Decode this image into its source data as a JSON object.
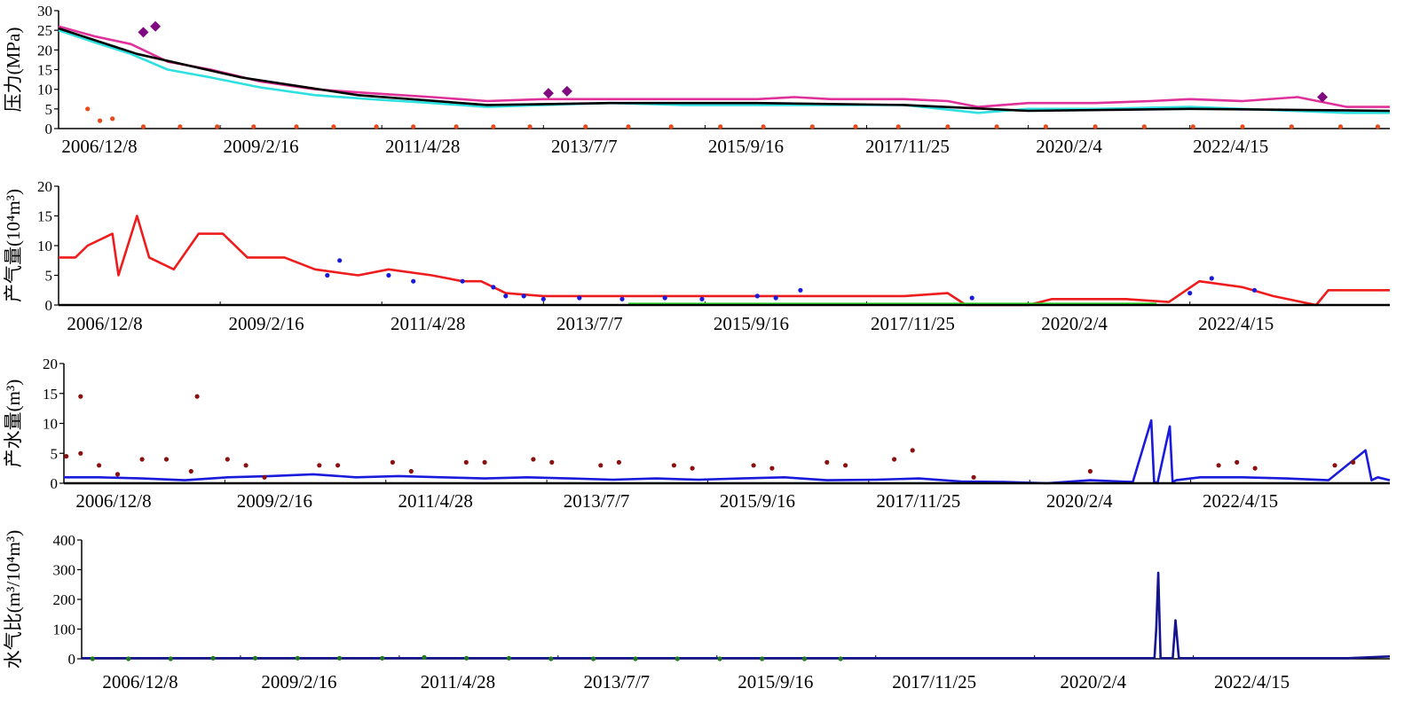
{
  "chart_data": [
    {
      "type": "line",
      "ylabel": "压力(MPa)",
      "ylim": [
        0,
        30
      ],
      "yticks": [
        "0",
        "5",
        "10",
        "15",
        "20",
        "25",
        "30"
      ],
      "x_tick_labels": [
        "2006/12/8",
        "2009/2/16",
        "2011/4/28",
        "2013/7/7",
        "2015/9/16",
        "2017/11/25",
        "2020/2/4",
        "2022/4/15"
      ],
      "xlim": [
        "2006/12/8",
        "2024/12/31"
      ],
      "series": [
        {
          "color": "#e0309a",
          "style": "line",
          "x": [
            "2006/12/8",
            "2007/6/1",
            "2007/12/1",
            "2008/6/1",
            "2009/1/1",
            "2009/9/1",
            "2010/6/1",
            "2011/3/1",
            "2012/1/1",
            "2012/10/1",
            "2013/7/7",
            "2014/6/1",
            "2015/6/1",
            "2016/6/1",
            "2016/12/1",
            "2017/6/1",
            "2018/6/1",
            "2019/1/1",
            "2019/6/1",
            "2020/2/4",
            "2021/1/1",
            "2021/10/1",
            "2022/4/15",
            "2023/1/1",
            "2023/10/1",
            "2024/6/1",
            "2024/12/31"
          ],
          "values": [
            26,
            23.5,
            21.5,
            17,
            15,
            12,
            10,
            9,
            8,
            7,
            7.5,
            7.5,
            7.5,
            7.5,
            8,
            7.5,
            7.5,
            7,
            5.5,
            6.5,
            6.5,
            7,
            7.5,
            7,
            8,
            5.5,
            5.5
          ]
        },
        {
          "color": "#2ee0e0",
          "style": "line",
          "x": [
            "2006/12/8",
            "2007/6/1",
            "2007/12/1",
            "2008/6/1",
            "2009/1/1",
            "2009/9/1",
            "2010/6/1",
            "2011/3/1",
            "2012/1/1",
            "2012/10/1",
            "2013/7/7",
            "2014/6/1",
            "2015/6/1",
            "2016/6/1",
            "2017/6/1",
            "2018/6/1",
            "2019/6/1",
            "2020/2/4",
            "2021/1/1",
            "2022/4/15",
            "2023/1/1",
            "2024/6/1",
            "2024/12/31"
          ],
          "values": [
            25,
            22,
            19,
            15,
            13,
            10.5,
            8.5,
            7.5,
            6.5,
            5.5,
            6,
            6.5,
            6,
            6,
            6,
            6,
            4,
            5,
            5,
            5.5,
            5,
            4,
            4
          ]
        },
        {
          "color": "#000000",
          "style": "line",
          "x": [
            "2006/12/8",
            "2008/1/1",
            "2009/6/1",
            "2011/1/1",
            "2012/10/1",
            "2014/6/1",
            "2016/6/1",
            "2018/6/1",
            "2020/2/4",
            "2022/4/15",
            "2024/12/31"
          ],
          "values": [
            25.5,
            19,
            13,
            8.5,
            6,
            6.5,
            6.5,
            6,
            4.5,
            5,
            4.5
          ]
        },
        {
          "color": "#e84a1c",
          "style": "points",
          "x": [
            "2007/5/1",
            "2007/7/1",
            "2007/9/1",
            "2008/2/1",
            "2008/8/1",
            "2009/2/1",
            "2009/8/1",
            "2010/3/1",
            "2010/9/1",
            "2011/4/1",
            "2011/10/1",
            "2012/5/1",
            "2012/11/1",
            "2013/5/1",
            "2014/2/1",
            "2014/9/1",
            "2015/4/1",
            "2015/12/1",
            "2016/7/1",
            "2017/3/1",
            "2017/10/1",
            "2018/5/1",
            "2019/1/1",
            "2019/9/1",
            "2020/5/1",
            "2021/1/1",
            "2021/9/1",
            "2022/5/1",
            "2023/1/1",
            "2023/9/1",
            "2024/5/1",
            "2024/11/1"
          ],
          "values": [
            5,
            2,
            2.5,
            0.5,
            0.5,
            0.5,
            0.5,
            0.5,
            0.5,
            0.5,
            0.5,
            0.5,
            0.5,
            0.5,
            0.5,
            0.5,
            0.5,
            0.5,
            0.5,
            0.5,
            0.5,
            0.5,
            0.5,
            0.5,
            0.5,
            0.5,
            0.5,
            0.5,
            0.5,
            0.5,
            0.5,
            0.5
          ]
        },
        {
          "color": "#800a80",
          "style": "diamonds",
          "x": [
            "2008/2/1",
            "2008/4/1",
            "2013/8/1",
            "2013/11/1",
            "2024/2/1"
          ],
          "values": [
            24.5,
            26,
            9,
            9.5,
            8
          ]
        }
      ]
    },
    {
      "type": "line",
      "ylabel": "产气量(10⁴m³)",
      "ylim": [
        0,
        20
      ],
      "yticks": [
        "0",
        "5",
        "10",
        "15",
        "20"
      ],
      "x_tick_labels": [
        "2006/12/8",
        "2009/2/16",
        "2011/4/28",
        "2013/7/7",
        "2015/9/16",
        "2017/11/25",
        "2020/2/4",
        "2022/4/15"
      ],
      "xlim": [
        "2006/12/8",
        "2024/12/31"
      ],
      "series": [
        {
          "color": "#ee1c1c",
          "style": "line",
          "x": [
            "2006/12/8",
            "2007/3/1",
            "2007/5/1",
            "2007/9/1",
            "2007/10/1",
            "2008/1/1",
            "2008/3/1",
            "2008/7/1",
            "2008/11/1",
            "2009/3/1",
            "2009/7/1",
            "2010/1/1",
            "2010/6/1",
            "2011/1/1",
            "2011/6/1",
            "2012/1/1",
            "2012/6/1",
            "2012/9/1",
            "2013/1/1",
            "2013/7/7",
            "2014/6/1",
            "2015/6/1",
            "2016/6/1",
            "2017/6/1",
            "2018/6/1",
            "2019/1/1",
            "2019/4/1",
            "2020/2/4",
            "2020/6/1",
            "2021/6/1",
            "2022/1/1",
            "2022/6/1",
            "2023/1/1",
            "2023/6/1",
            "2024/1/1",
            "2024/3/1",
            "2024/12/31"
          ],
          "values": [
            8,
            8,
            10,
            12,
            5,
            15,
            8,
            6,
            12,
            12,
            8,
            8,
            6,
            5,
            6,
            5,
            4,
            4,
            2,
            1.5,
            1.5,
            1.5,
            1.5,
            1.5,
            1.5,
            2,
            0,
            0,
            1,
            1,
            0.5,
            4,
            3,
            1.5,
            0,
            2.5,
            2.5
          ]
        },
        {
          "color": "#1a1adc",
          "style": "points",
          "x": [
            "2010/8/1",
            "2010/10/1",
            "2011/6/1",
            "2011/10/1",
            "2012/6/1",
            "2012/11/1",
            "2013/1/1",
            "2013/4/1",
            "2013/7/7",
            "2014/1/1",
            "2014/8/1",
            "2015/3/1",
            "2015/9/1",
            "2016/6/1",
            "2016/9/1",
            "2017/1/1",
            "2019/5/1",
            "2022/4/15",
            "2022/8/1",
            "2023/3/1"
          ],
          "values": [
            5,
            7.5,
            5,
            4,
            4,
            3,
            1.5,
            1.5,
            1,
            1.2,
            1,
            1.2,
            1,
            1.5,
            1.2,
            2.5,
            1.2,
            2,
            4.5,
            2.5
          ]
        },
        {
          "color": "#22dd22",
          "style": "line",
          "x": [
            "2014/9/1",
            "2015/4/1",
            "2017/9/1",
            "2017/10/1",
            "2021/10/1",
            "2021/11/1"
          ],
          "values": [
            0.2,
            0.2,
            0.2,
            0.2,
            0.2,
            0.2
          ]
        },
        {
          "color": "#000000",
          "style": "line",
          "x": [
            "2006/12/8",
            "2024/12/31"
          ],
          "values": [
            0,
            0
          ]
        }
      ]
    },
    {
      "type": "line",
      "ylabel": "产水量(m³)",
      "ylim": [
        0,
        20
      ],
      "yticks": [
        "0",
        "5",
        "10",
        "15",
        "20"
      ],
      "x_tick_labels": [
        "2006/12/8",
        "2009/2/16",
        "2011/4/28",
        "2013/7/7",
        "2015/9/16",
        "2017/11/25",
        "2020/2/4",
        "2022/4/15"
      ],
      "xlim": [
        "2006/12/8",
        "2024/12/31"
      ],
      "series": [
        {
          "color": "#1a1adc",
          "style": "line",
          "x": [
            "2006/12/8",
            "2007/6/1",
            "2008/1/1",
            "2008/8/1",
            "2009/3/1",
            "2009/10/1",
            "2010/5/1",
            "2010/12/1",
            "2011/7/1",
            "2012/2/1",
            "2012/9/1",
            "2013/4/1",
            "2013/11/1",
            "2014/6/1",
            "2015/1/1",
            "2015/8/1",
            "2016/3/1",
            "2016/10/1",
            "2017/5/1",
            "2018/1/1",
            "2018/8/1",
            "2019/3/1",
            "2019/10/1",
            "2020/5/1",
            "2020/12/1",
            "2021/7/1",
            "2021/10/1",
            "2021/10/15",
            "2021/11/1",
            "2022/1/1",
            "2022/1/15",
            "2022/2/1",
            "2022/6/1",
            "2023/1/1",
            "2023/8/1",
            "2024/3/1",
            "2024/9/1",
            "2024/10/1",
            "2024/11/1",
            "2024/12/31"
          ],
          "values": [
            1,
            1,
            0.8,
            0.5,
            1,
            1.2,
            1.5,
            1,
            1.2,
            1,
            0.8,
            1,
            0.8,
            0.6,
            0.8,
            0.6,
            0.8,
            1,
            0.5,
            0.6,
            0.8,
            0.3,
            0.2,
            0,
            0.5,
            0.2,
            10.5,
            0.2,
            0,
            9.5,
            0.2,
            0.5,
            1,
            1,
            0.8,
            0.5,
            5.5,
            0.5,
            1,
            0.5
          ]
        },
        {
          "color": "#8b1010",
          "style": "points",
          "x": [
            "2006/12/20",
            "2007/3/1",
            "2007/6/1",
            "2007/9/1",
            "2008/1/1",
            "2008/5/1",
            "2008/9/1",
            "2009/3/1",
            "2009/6/1",
            "2009/9/1",
            "2010/6/1",
            "2010/9/1",
            "2011/6/1",
            "2011/9/1",
            "2012/6/1",
            "2012/9/1",
            "2013/5/1",
            "2013/8/1",
            "2014/4/1",
            "2014/7/1",
            "2015/4/1",
            "2015/7/1",
            "2016/5/1",
            "2016/8/1",
            "2017/5/1",
            "2017/8/1",
            "2018/4/1",
            "2018/7/1",
            "2019/5/1",
            "2020/12/1",
            "2022/9/1",
            "2022/12/1",
            "2023/3/1",
            "2024/4/1",
            "2024/7/1",
            "2007/3/1",
            "2008/10/1"
          ],
          "values": [
            4.5,
            5,
            3,
            1.5,
            4,
            4,
            2,
            4,
            3,
            1,
            3,
            3,
            3.5,
            2,
            3.5,
            3.5,
            4,
            3.5,
            3,
            3.5,
            3,
            2.5,
            3,
            2.5,
            3.5,
            3,
            4,
            5.5,
            1,
            2,
            3,
            3.5,
            2.5,
            3,
            3.5,
            14.5,
            14.5
          ]
        },
        {
          "color": "#000000",
          "style": "line",
          "x": [
            "2006/12/8",
            "2024/12/31"
          ],
          "values": [
            0,
            0
          ]
        }
      ]
    },
    {
      "type": "line",
      "ylabel": "水气比(m³/10⁴m³)",
      "ylim": [
        0,
        400
      ],
      "yticks": [
        "0",
        "100",
        "200",
        "300",
        "400"
      ],
      "x_tick_labels": [
        "2006/12/8",
        "2009/2/16",
        "2011/4/28",
        "2013/7/7",
        "2015/9/16",
        "2017/11/25",
        "2020/2/4",
        "2022/4/15"
      ],
      "xlim": [
        "2006/12/8",
        "2024/12/31"
      ],
      "series": [
        {
          "color": "#14148c",
          "style": "line",
          "x": [
            "2006/12/8",
            "2012/1/1",
            "2016/1/1",
            "2019/1/1",
            "2021/10/1",
            "2021/10/10",
            "2021/10/20",
            "2021/11/1",
            "2022/1/1",
            "2022/1/15",
            "2022/2/1",
            "2024/6/1",
            "2024/12/31"
          ],
          "values": [
            2,
            2,
            2,
            2,
            2,
            100,
            290,
            2,
            2,
            130,
            2,
            2,
            8
          ]
        },
        {
          "color": "#1e7a1e",
          "style": "points",
          "x": [
            "2007/2/1",
            "2007/8/1",
            "2008/3/1",
            "2008/10/1",
            "2009/5/1",
            "2009/12/1",
            "2010/7/1",
            "2011/2/1",
            "2011/9/1",
            "2012/4/1",
            "2012/11/1",
            "2013/6/1",
            "2014/1/1",
            "2014/8/1",
            "2015/3/1",
            "2015/10/1",
            "2016/5/1",
            "2016/12/1",
            "2017/6/1"
          ],
          "values": [
            0,
            0,
            0,
            2,
            2,
            2,
            2,
            2,
            5,
            2,
            2,
            0,
            0,
            0,
            0,
            0,
            0,
            0,
            0
          ]
        }
      ]
    }
  ]
}
